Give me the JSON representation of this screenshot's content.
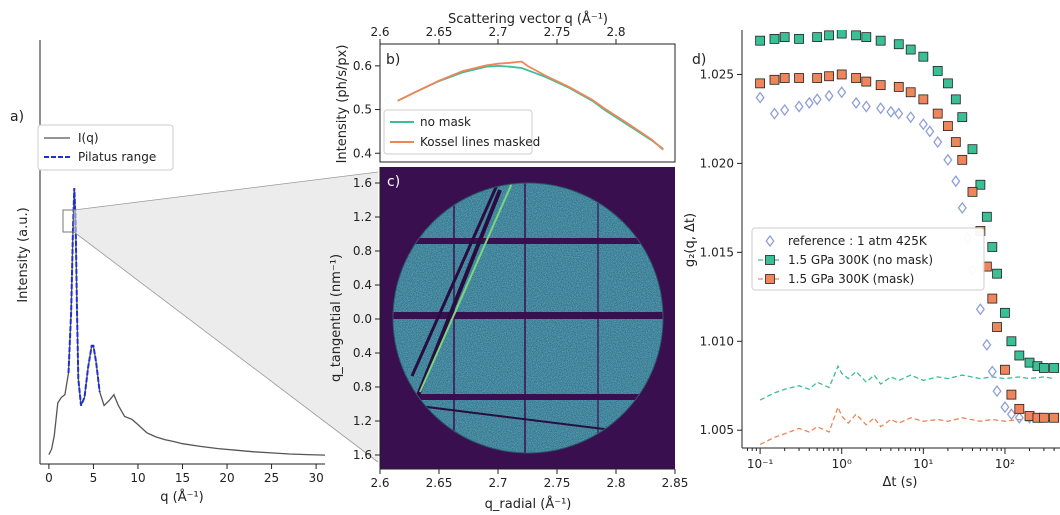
{
  "colors": {
    "iq": "#555555",
    "pilatus": "#1f2fd6",
    "no_mask": "#3bbf95",
    "kossel": "#f0845a",
    "reference": "#8e9fd6",
    "detector_bg": "#3a0f4f",
    "detector_fg": "#2a7f8e",
    "zoom": "#d9d9d9"
  },
  "chart_data": [
    {
      "panel": "a)",
      "type": "line",
      "xlabel": "q (Å⁻¹)",
      "ylabel": "Intensity (a.u.)",
      "xlim": [
        -1,
        31
      ],
      "x_ticks": [
        "0",
        "5",
        "10",
        "15",
        "20",
        "25",
        "30"
      ],
      "legend": [
        "I(q)",
        "Pilatus range"
      ],
      "legend_position": "top-left",
      "series": [
        {
          "name": "I(q)",
          "x": [
            0,
            0.3,
            0.6,
            1.0,
            1.4,
            1.8,
            2.2,
            2.5,
            2.7,
            2.85,
            3.0,
            3.15,
            3.3,
            3.6,
            4.0,
            4.4,
            4.8,
            5.0,
            5.3,
            5.7,
            6.2,
            6.8,
            7.3,
            7.8,
            8.5,
            9.3,
            10.0,
            11,
            12,
            13,
            14,
            15,
            17,
            19,
            21,
            23,
            25,
            27,
            29,
            31
          ],
          "y": [
            0.02,
            0.04,
            0.09,
            0.21,
            0.23,
            0.24,
            0.32,
            0.55,
            0.85,
            1.0,
            0.88,
            0.55,
            0.3,
            0.2,
            0.23,
            0.34,
            0.42,
            0.42,
            0.36,
            0.25,
            0.2,
            0.22,
            0.24,
            0.2,
            0.16,
            0.15,
            0.13,
            0.1,
            0.085,
            0.075,
            0.068,
            0.06,
            0.05,
            0.042,
            0.036,
            0.03,
            0.026,
            0.022,
            0.02,
            0.018
          ]
        },
        {
          "name": "Pilatus range",
          "x": [
            2.2,
            2.5,
            2.7,
            2.85,
            3.0,
            3.15,
            3.3,
            3.6,
            4.0,
            4.4,
            4.8,
            5.0,
            5.3,
            5.7
          ],
          "y": [
            0.32,
            0.55,
            0.85,
            1.0,
            0.88,
            0.55,
            0.3,
            0.2,
            0.23,
            0.34,
            0.42,
            0.42,
            0.36,
            0.25
          ]
        }
      ]
    },
    {
      "panel": "b)",
      "type": "line",
      "xlabel": "Scattering vector q (Å⁻¹)",
      "ylabel": "Intensity (ph/s/px)",
      "xlim": [
        2.6,
        2.85
      ],
      "ylim": [
        0.38,
        0.65
      ],
      "x_ticks": [
        "2.6",
        "2.65",
        "2.7",
        "2.75",
        "2.8"
      ],
      "x_tick_values": [
        2.6,
        2.65,
        2.7,
        2.75,
        2.8
      ],
      "y_ticks": [
        "0.4",
        "0.5",
        "0.6"
      ],
      "y_tick_values": [
        0.4,
        0.5,
        0.6
      ],
      "legend": [
        "no mask",
        "Kossel lines masked"
      ],
      "legend_position": "bottom-left",
      "series": [
        {
          "name": "no mask",
          "x": [
            2.615,
            2.63,
            2.65,
            2.67,
            2.69,
            2.7,
            2.71,
            2.72,
            2.725,
            2.74,
            2.76,
            2.78,
            2.79,
            2.81,
            2.83,
            2.84
          ],
          "y": [
            0.52,
            0.54,
            0.565,
            0.585,
            0.598,
            0.6,
            0.598,
            0.595,
            0.59,
            0.575,
            0.55,
            0.52,
            0.5,
            0.465,
            0.43,
            0.41
          ]
        },
        {
          "name": "Kossel lines masked",
          "x": [
            2.615,
            2.63,
            2.65,
            2.67,
            2.69,
            2.7,
            2.71,
            2.72,
            2.725,
            2.74,
            2.76,
            2.78,
            2.79,
            2.81,
            2.83,
            2.84
          ],
          "y": [
            0.52,
            0.54,
            0.566,
            0.588,
            0.601,
            0.605,
            0.607,
            0.61,
            0.6,
            0.578,
            0.552,
            0.522,
            0.503,
            0.468,
            0.432,
            0.408
          ]
        }
      ]
    },
    {
      "panel": "c)",
      "type": "heatmap",
      "xlabel": "q_radial (Å⁻¹)",
      "ylabel": "q_tangential (nm⁻¹)",
      "xlim": [
        2.6,
        2.85
      ],
      "x_ticks": [
        "2.6",
        "2.65",
        "2.7",
        "2.75",
        "2.8",
        "2.85"
      ],
      "y_ticks": [
        "1.6",
        "1.2",
        "0.8",
        "0.4",
        "0.0",
        "0.4",
        "0.8",
        "1.2",
        "1.6"
      ]
    },
    {
      "panel": "d)",
      "type": "scatter",
      "xlabel": "Δt (s)",
      "ylabel": "g₂(q, Δt)",
      "x_scale": "log",
      "xlim": [
        0.06,
        500
      ],
      "ylim": [
        1.004,
        1.0275
      ],
      "x_ticks": [
        "10⁻¹",
        "10⁰",
        "10¹",
        "10²"
      ],
      "x_tick_values": [
        0.1,
        1,
        10,
        100
      ],
      "y_ticks": [
        "1.005",
        "1.010",
        "1.015",
        "1.020",
        "1.025"
      ],
      "y_tick_values": [
        1.005,
        1.01,
        1.015,
        1.02,
        1.025
      ],
      "legend": [
        "reference : 1 atm 425K",
        "1.5 GPa 300K (no mask)",
        "1.5 GPa 300K (mask)"
      ],
      "legend_position": "center-left",
      "series": [
        {
          "name": "reference : 1 atm 425K",
          "marker": "diamond",
          "x": [
            0.1,
            0.15,
            0.2,
            0.3,
            0.4,
            0.5,
            0.7,
            1,
            1.5,
            2,
            3,
            4,
            5,
            7,
            10,
            12,
            15,
            20,
            25,
            30,
            35,
            40,
            50,
            60,
            70,
            80,
            100,
            120,
            150,
            200
          ],
          "y": [
            1.0237,
            1.0228,
            1.023,
            1.0232,
            1.0234,
            1.0236,
            1.0238,
            1.024,
            1.0234,
            1.0232,
            1.0231,
            1.0229,
            1.0228,
            1.0226,
            1.0222,
            1.0218,
            1.0212,
            1.0202,
            1.019,
            1.0175,
            1.0158,
            1.014,
            1.0118,
            1.0098,
            1.0083,
            1.0072,
            1.0063,
            1.0059,
            1.0057,
            1.0057
          ]
        },
        {
          "name": "1.5 GPa 300K (no mask)",
          "marker": "square",
          "x": [
            0.1,
            0.15,
            0.2,
            0.3,
            0.5,
            0.7,
            1,
            1.5,
            2,
            3,
            5,
            7,
            10,
            15,
            20,
            25,
            30,
            40,
            50,
            60,
            70,
            80,
            100,
            120,
            150,
            200,
            250,
            300,
            400
          ],
          "y": [
            1.0269,
            1.027,
            1.0271,
            1.027,
            1.0271,
            1.0272,
            1.0273,
            1.0272,
            1.0271,
            1.0269,
            1.0267,
            1.0264,
            1.026,
            1.0252,
            1.0245,
            1.0236,
            1.0226,
            1.0208,
            1.0188,
            1.017,
            1.0153,
            1.0138,
            1.0116,
            1.01,
            1.0092,
            1.0088,
            1.0086,
            1.0085,
            1.0085
          ]
        },
        {
          "name": "1.5 GPa 300K (mask)",
          "marker": "square",
          "x": [
            0.1,
            0.15,
            0.2,
            0.3,
            0.5,
            0.7,
            1,
            1.5,
            2,
            3,
            5,
            7,
            10,
            15,
            20,
            25,
            30,
            40,
            50,
            60,
            70,
            80,
            100,
            120,
            150,
            200,
            250,
            300,
            400
          ],
          "y": [
            1.0245,
            1.0247,
            1.0248,
            1.0248,
            1.0248,
            1.0249,
            1.025,
            1.0248,
            1.0246,
            1.0244,
            1.0243,
            1.024,
            1.0236,
            1.0228,
            1.0221,
            1.0212,
            1.0202,
            1.0184,
            1.0162,
            1.0142,
            1.0124,
            1.0108,
            1.0084,
            1.007,
            1.0062,
            1.0058,
            1.0057,
            1.0057,
            1.0057
          ]
        },
        {
          "name": "1.5 GPa 300K (no mask) baseline",
          "marker": "dashed",
          "x": [
            0.1,
            0.15,
            0.2,
            0.3,
            0.4,
            0.5,
            0.7,
            0.9,
            1,
            1.2,
            1.5,
            2,
            2.5,
            3,
            4,
            5,
            7,
            10,
            15,
            20,
            30,
            50,
            70,
            100,
            150,
            200,
            300,
            400
          ],
          "y": [
            1.0067,
            1.0071,
            1.0073,
            1.0075,
            1.0073,
            1.0077,
            1.0074,
            1.0086,
            1.0082,
            1.0079,
            1.0083,
            1.0077,
            1.0081,
            1.0076,
            1.008,
            1.0078,
            1.0081,
            1.0078,
            1.008,
            1.0079,
            1.0081,
            1.0079,
            1.008,
            1.0079,
            1.008,
            1.0079,
            1.008,
            1.0079
          ]
        },
        {
          "name": "1.5 GPa 300K (mask) baseline",
          "marker": "dashed",
          "x": [
            0.1,
            0.15,
            0.2,
            0.3,
            0.4,
            0.5,
            0.7,
            0.9,
            1,
            1.2,
            1.5,
            2,
            2.5,
            3,
            4,
            5,
            7,
            10,
            15,
            20,
            30,
            50,
            70,
            100,
            150,
            200,
            300,
            400
          ],
          "y": [
            1.0042,
            1.0046,
            1.0048,
            1.0051,
            1.0049,
            1.0052,
            1.0049,
            1.0063,
            1.0058,
            1.0054,
            1.0059,
            1.0053,
            1.0057,
            1.0052,
            1.0056,
            1.0054,
            1.0057,
            1.0055,
            1.0056,
            1.0055,
            1.0057,
            1.0055,
            1.0056,
            1.0055,
            1.0056,
            1.0055,
            1.0056,
            1.0055
          ]
        }
      ]
    }
  ]
}
